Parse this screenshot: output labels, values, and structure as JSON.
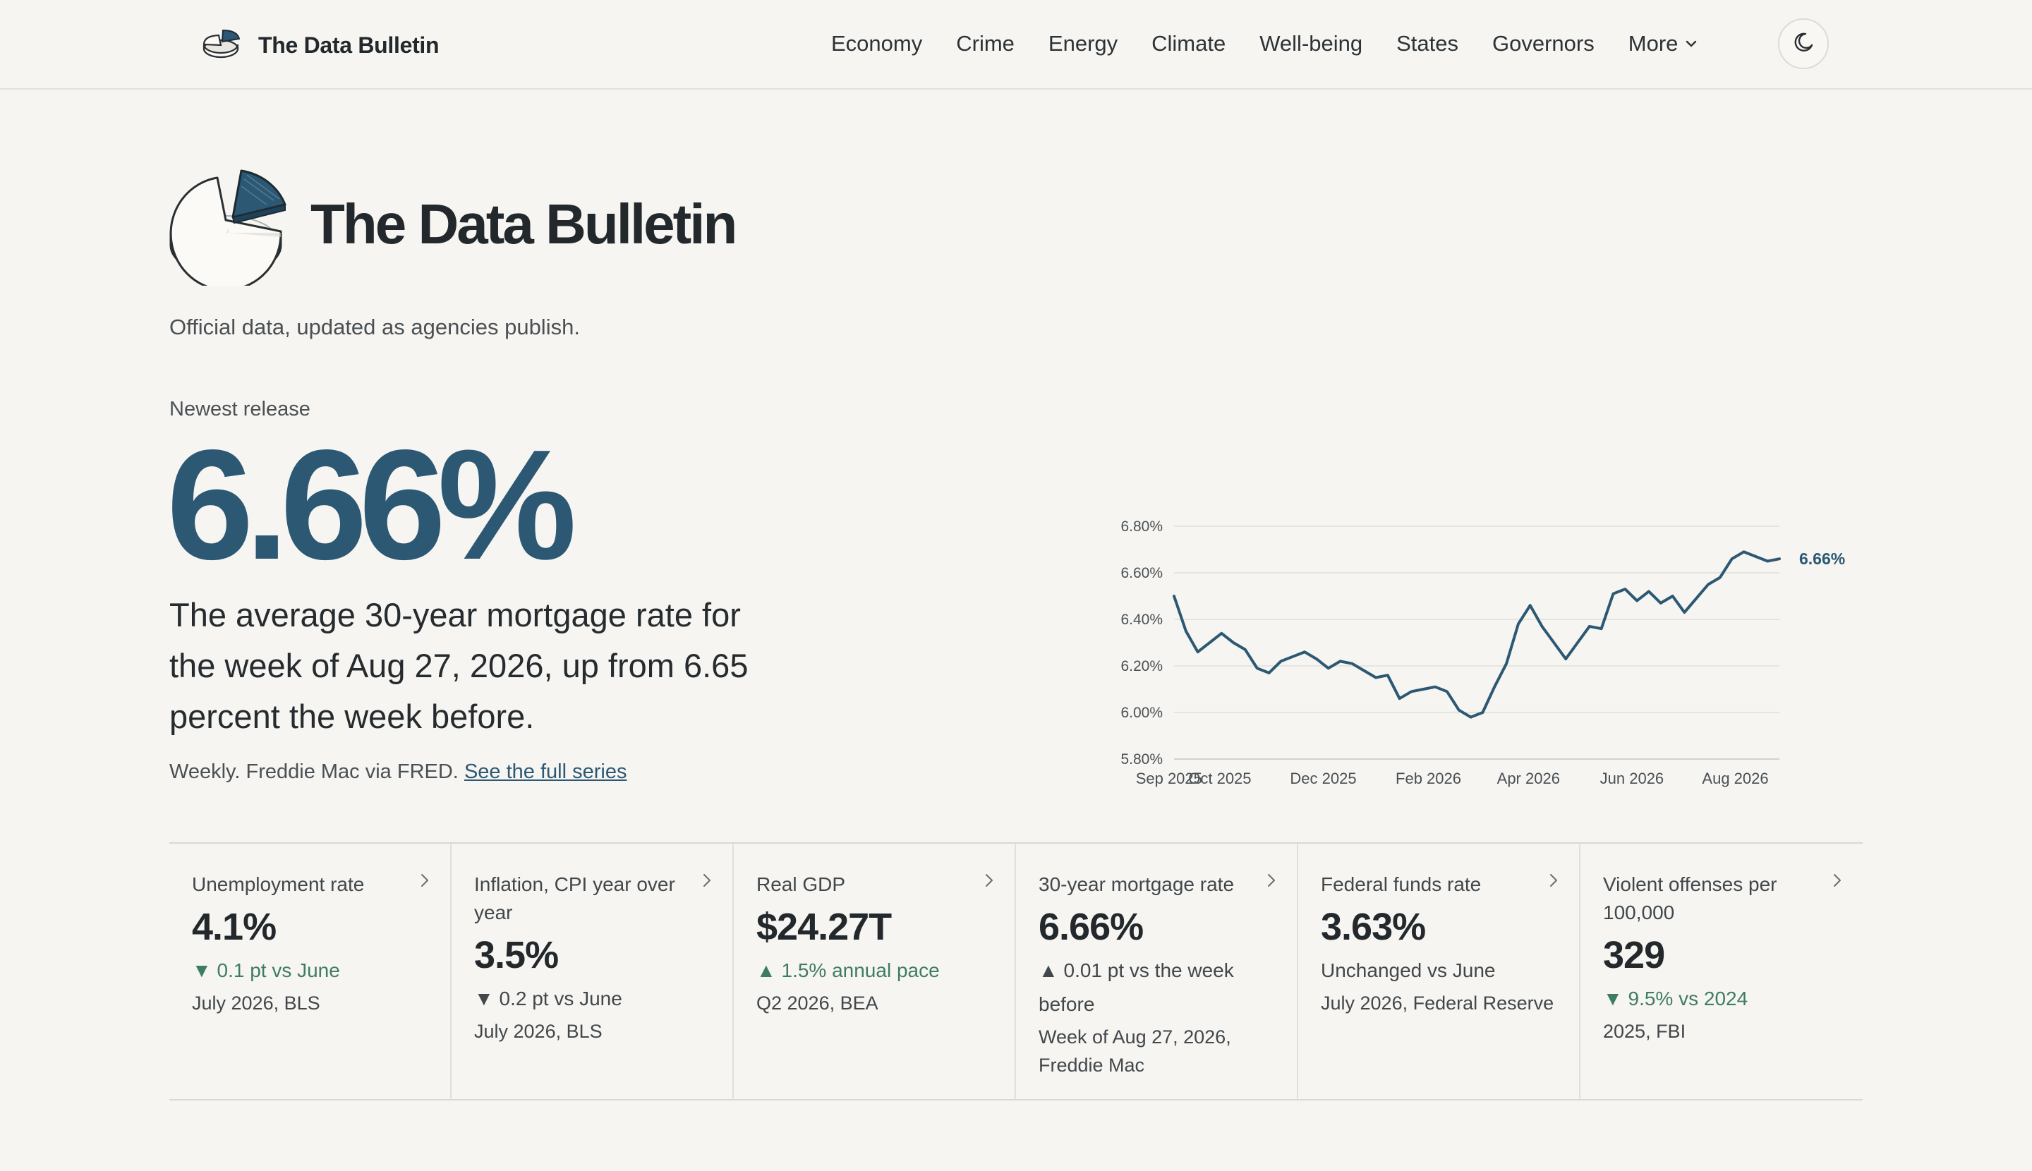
{
  "brand": {
    "name": "The Data Bulletin"
  },
  "nav": {
    "items": [
      "Economy",
      "Crime",
      "Energy",
      "Climate",
      "Well-being",
      "States",
      "Governors"
    ],
    "more_label": "More"
  },
  "hero": {
    "title": "The Data Bulletin",
    "tagline": "Official data, updated as agencies publish.",
    "release_label": "Newest release",
    "value": "6.66%",
    "description": "The average 30-year mortgage rate for the week of Aug 27, 2026, up from 6.65 percent the week before.",
    "source_text": "Weekly. Freddie Mac via FRED.",
    "source_link": "See the full series"
  },
  "chart_data": {
    "type": "line",
    "title": "",
    "xlabel": "",
    "ylabel": "",
    "series": [
      {
        "values": [
          6.5,
          6.35,
          6.26,
          6.3,
          6.34,
          6.3,
          6.27,
          6.19,
          6.17,
          6.22,
          6.24,
          6.26,
          6.23,
          6.19,
          6.22,
          6.21,
          6.18,
          6.15,
          6.16,
          6.06,
          6.09,
          6.1,
          6.11,
          6.09,
          6.01,
          5.98,
          6.0,
          6.11,
          6.21,
          6.38,
          6.46,
          6.37,
          6.3,
          6.23,
          6.3,
          6.37,
          6.36,
          6.51,
          6.53,
          6.48,
          6.52,
          6.47,
          6.5,
          6.43,
          6.49,
          6.55,
          6.58,
          6.66,
          6.69,
          6.67,
          6.65,
          6.66
        ]
      }
    ],
    "x_start": "2025-09-04",
    "x_end": "2026-08-27",
    "x_ticks": [
      "Sep 2025",
      "Oct 2025",
      "Dec 2025",
      "Feb 2026",
      "Apr 2026",
      "Jun 2026",
      "Aug 2026"
    ],
    "y_ticks": [
      "5.80%",
      "6.00%",
      "6.20%",
      "6.40%",
      "6.60%",
      "6.80%"
    ],
    "ylim": [
      5.8,
      6.8
    ],
    "end_label": "6.66%",
    "grid": true,
    "color": "#2c5873"
  },
  "cards": [
    {
      "label": "Unemployment rate",
      "value": "4.1%",
      "change": "▼ 0.1 pt vs June",
      "change_tone": "good",
      "source": "July 2026, BLS"
    },
    {
      "label": "Inflation, CPI year over year",
      "value": "3.5%",
      "change": "▼ 0.2 pt vs June",
      "change_tone": "neutral",
      "source": "July 2026, BLS"
    },
    {
      "label": "Real GDP",
      "value": "$24.27T",
      "change": "▲ 1.5% annual pace",
      "change_tone": "good",
      "source": "Q2 2026, BEA"
    },
    {
      "label": "30-year mortgage rate",
      "value": "6.66%",
      "change": "▲ 0.01 pt vs the week before",
      "change_tone": "neutral",
      "source": "Week of Aug 27, 2026, Freddie Mac"
    },
    {
      "label": "Federal funds rate",
      "value": "3.63%",
      "change": "Unchanged vs June",
      "change_tone": "neutral",
      "source": "July 2026, Federal Reserve"
    },
    {
      "label": "Violent offenses per 100,000",
      "value": "329",
      "change": "▼ 9.5% vs 2024",
      "change_tone": "good",
      "source": "2025, FBI"
    }
  ],
  "colors": {
    "background": "#f6f5f1",
    "accent": "#2c5873",
    "positive": "#3f7d62",
    "text": "#22282c"
  }
}
